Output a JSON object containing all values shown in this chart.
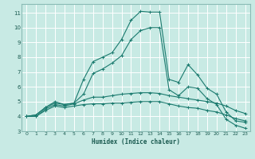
{
  "xlabel": "Humidex (Indice chaleur)",
  "ylabel": "",
  "bg_color": "#c8eae4",
  "grid_color": "#ffffff",
  "line_color": "#1a7a6e",
  "tick_color": "#1a5a50",
  "spine_color": "#8abbb5",
  "xlim": [
    -0.5,
    23.5
  ],
  "ylim": [
    3,
    11.6
  ],
  "yticks": [
    3,
    4,
    5,
    6,
    7,
    8,
    9,
    10,
    11
  ],
  "xticks": [
    0,
    1,
    2,
    3,
    4,
    5,
    6,
    7,
    8,
    9,
    10,
    11,
    12,
    13,
    14,
    15,
    16,
    17,
    18,
    19,
    20,
    21,
    22,
    23
  ],
  "series": [
    {
      "x": [
        0,
        1,
        2,
        3,
        4,
        5,
        6,
        7,
        8,
        9,
        10,
        11,
        12,
        13,
        14,
        15,
        16,
        17,
        18,
        19,
        20,
        21,
        22,
        23
      ],
      "y": [
        4.0,
        4.1,
        4.6,
        5.0,
        4.8,
        4.9,
        6.5,
        7.7,
        8.0,
        8.3,
        9.2,
        10.5,
        11.1,
        11.05,
        11.05,
        6.5,
        6.3,
        7.5,
        6.8,
        5.9,
        5.5,
        4.3,
        3.7,
        3.6
      ]
    },
    {
      "x": [
        0,
        1,
        2,
        3,
        4,
        5,
        6,
        7,
        8,
        9,
        10,
        11,
        12,
        13,
        14,
        15,
        16,
        17,
        18,
        19,
        20,
        21,
        22,
        23
      ],
      "y": [
        4.0,
        4.1,
        4.6,
        4.9,
        4.8,
        4.9,
        5.5,
        6.9,
        7.2,
        7.6,
        8.1,
        9.2,
        9.8,
        10.0,
        10.0,
        5.8,
        5.4,
        6.0,
        5.9,
        5.2,
        4.8,
        3.8,
        3.4,
        3.2
      ]
    },
    {
      "x": [
        0,
        1,
        2,
        3,
        4,
        5,
        6,
        7,
        8,
        9,
        10,
        11,
        12,
        13,
        14,
        15,
        16,
        17,
        18,
        19,
        20,
        21,
        22,
        23
      ],
      "y": [
        4.0,
        4.0,
        4.5,
        4.8,
        4.7,
        4.85,
        5.1,
        5.3,
        5.3,
        5.4,
        5.5,
        5.55,
        5.6,
        5.6,
        5.55,
        5.4,
        5.3,
        5.2,
        5.1,
        5.0,
        4.9,
        4.7,
        4.4,
        4.2
      ]
    },
    {
      "x": [
        0,
        1,
        2,
        3,
        4,
        5,
        6,
        7,
        8,
        9,
        10,
        11,
        12,
        13,
        14,
        15,
        16,
        17,
        18,
        19,
        20,
        21,
        22,
        23
      ],
      "y": [
        4.0,
        4.0,
        4.4,
        4.7,
        4.6,
        4.7,
        4.8,
        4.85,
        4.85,
        4.9,
        4.9,
        4.95,
        5.0,
        5.0,
        5.0,
        4.85,
        4.7,
        4.6,
        4.55,
        4.4,
        4.3,
        4.1,
        3.85,
        3.7
      ]
    }
  ]
}
